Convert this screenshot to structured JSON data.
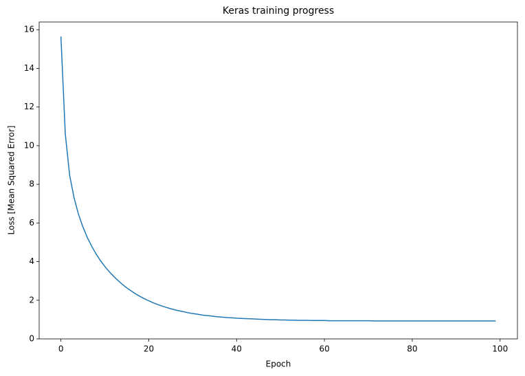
{
  "chart_data": {
    "type": "line",
    "title": "Keras training progress",
    "xlabel": "Epoch",
    "ylabel": "Loss [Mean Squared Error]",
    "x": [
      0,
      1,
      2,
      3,
      4,
      5,
      6,
      7,
      8,
      9,
      10,
      11,
      12,
      13,
      14,
      15,
      16,
      17,
      18,
      19,
      20,
      21,
      22,
      23,
      24,
      25,
      26,
      27,
      28,
      29,
      30,
      31,
      32,
      33,
      34,
      35,
      36,
      37,
      38,
      39,
      40,
      41,
      42,
      43,
      44,
      45,
      46,
      47,
      48,
      49,
      50,
      51,
      52,
      53,
      54,
      55,
      56,
      57,
      58,
      59,
      60,
      61,
      62,
      63,
      64,
      65,
      66,
      67,
      68,
      69,
      70,
      71,
      72,
      73,
      74,
      75,
      76,
      77,
      78,
      79,
      80,
      81,
      82,
      83,
      84,
      85,
      86,
      87,
      88,
      89,
      90,
      91,
      92,
      93,
      94,
      95,
      96,
      97,
      98,
      99
    ],
    "series": [
      {
        "name": "loss",
        "color": "#1f77b4",
        "values": [
          15.65,
          10.6,
          8.45,
          7.3,
          6.45,
          5.8,
          5.25,
          4.8,
          4.4,
          4.05,
          3.75,
          3.48,
          3.24,
          3.02,
          2.82,
          2.64,
          2.48,
          2.33,
          2.2,
          2.08,
          1.97,
          1.87,
          1.78,
          1.7,
          1.63,
          1.56,
          1.5,
          1.45,
          1.4,
          1.35,
          1.31,
          1.28,
          1.24,
          1.21,
          1.19,
          1.16,
          1.14,
          1.12,
          1.1,
          1.09,
          1.07,
          1.06,
          1.05,
          1.04,
          1.03,
          1.02,
          1.01,
          1.0,
          0.99,
          0.99,
          0.98,
          0.98,
          0.97,
          0.97,
          0.96,
          0.96,
          0.96,
          0.95,
          0.95,
          0.95,
          0.95,
          0.94,
          0.94,
          0.94,
          0.94,
          0.94,
          0.94,
          0.94,
          0.94,
          0.94,
          0.94,
          0.93,
          0.93,
          0.93,
          0.93,
          0.93,
          0.93,
          0.93,
          0.93,
          0.93,
          0.93,
          0.93,
          0.93,
          0.93,
          0.93,
          0.93,
          0.93,
          0.93,
          0.93,
          0.93,
          0.93,
          0.93,
          0.93,
          0.93,
          0.93,
          0.93,
          0.93,
          0.93,
          0.93,
          0.93
        ]
      }
    ],
    "xlim": [
      -4.95,
      103.95
    ],
    "ylim": [
      0,
      16.4
    ],
    "xticks": [
      0,
      20,
      40,
      60,
      80,
      100
    ],
    "yticks": [
      0,
      2,
      4,
      6,
      8,
      10,
      12,
      14,
      16
    ],
    "grid": false
  }
}
